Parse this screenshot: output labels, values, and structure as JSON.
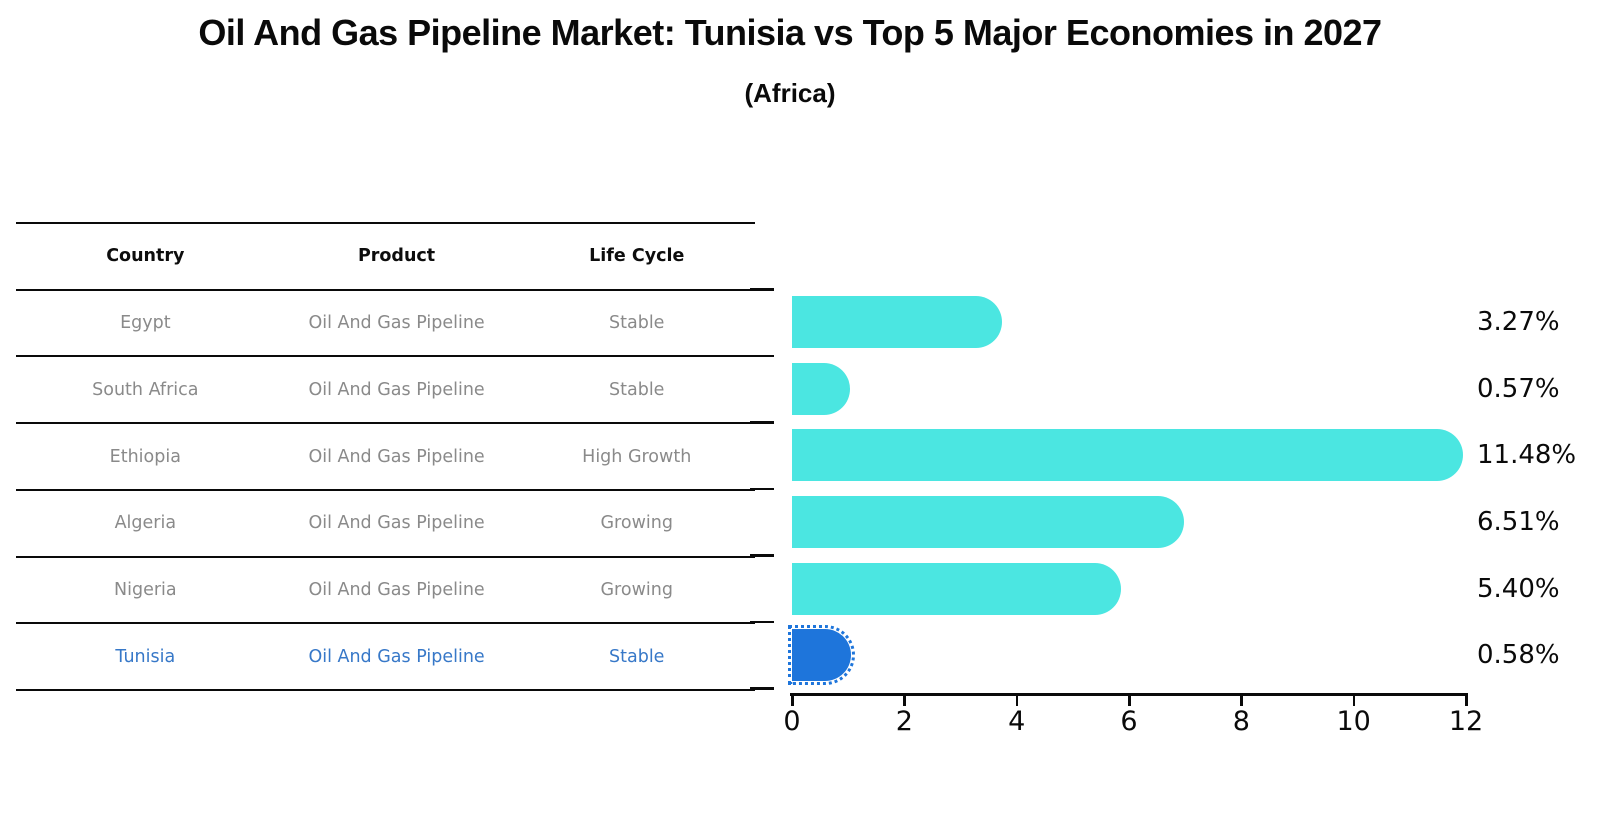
{
  "title": "Oil And Gas Pipeline Market: Tunisia vs Top 5 Major Economies in 2027",
  "subtitle": "(Africa)",
  "table": {
    "headers": [
      "Country",
      "Product",
      "Life Cycle"
    ],
    "rows": [
      {
        "country": "Egypt",
        "product": "Oil And Gas Pipeline",
        "life_cycle": "Stable",
        "highlighted": false
      },
      {
        "country": "South Africa",
        "product": "Oil And Gas Pipeline",
        "life_cycle": "Stable",
        "highlighted": false
      },
      {
        "country": "Ethiopia",
        "product": "Oil And Gas Pipeline",
        "life_cycle": "High Growth",
        "highlighted": false
      },
      {
        "country": "Algeria",
        "product": "Oil And Gas Pipeline",
        "life_cycle": "Growing",
        "highlighted": false
      },
      {
        "country": "Nigeria",
        "product": "Oil And Gas Pipeline",
        "life_cycle": "Growing",
        "highlighted": false
      },
      {
        "country": "Tunisia",
        "product": "Oil And Gas Pipeline",
        "life_cycle": "Stable",
        "highlighted": true
      }
    ]
  },
  "chart_data": {
    "type": "bar",
    "orientation": "horizontal",
    "title": "Oil And Gas Pipeline Market: Tunisia vs Top 5 Major Economies in 2027",
    "subtitle": "(Africa)",
    "categories": [
      "Egypt",
      "South Africa",
      "Ethiopia",
      "Algeria",
      "Nigeria",
      "Tunisia"
    ],
    "values": [
      3.27,
      0.57,
      11.48,
      6.51,
      5.4,
      0.58
    ],
    "value_labels": [
      "3.27%",
      "0.57%",
      "11.48%",
      "6.51%",
      "5.40%",
      "0.58%"
    ],
    "unit": "%",
    "x_ticks": [
      0,
      2,
      4,
      6,
      8,
      10,
      12
    ],
    "xlim": [
      0,
      12
    ],
    "grid": false,
    "legend": false,
    "bar_color": "#4be6e1",
    "highlight_color": "#1e75db",
    "highlight_index": 5,
    "highlight_edge_style": "dotted"
  },
  "colors": {
    "background": "#ffffff",
    "bar_cyan": "#4be6e1",
    "bar_blue": "#1e75db",
    "highlight_text_blue": "#3778c8",
    "table_text_gray": "#8a8a8a",
    "axis_black": "#0a0a0a"
  }
}
